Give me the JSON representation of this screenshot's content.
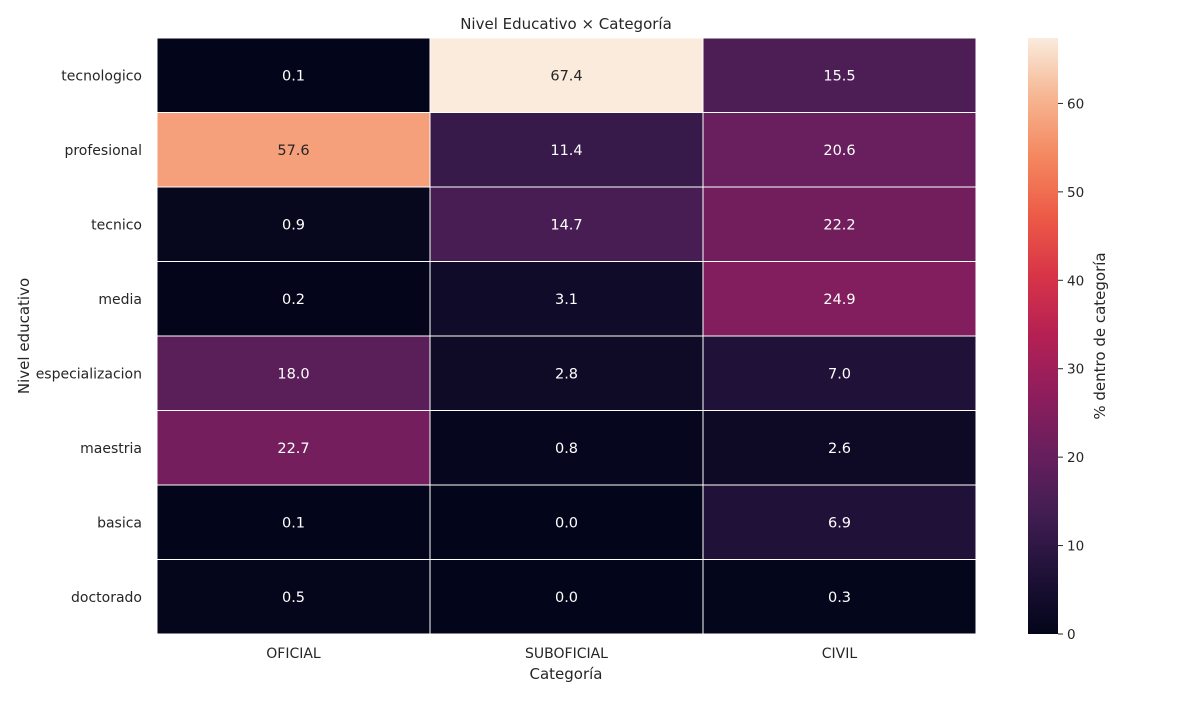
{
  "chart_data": {
    "type": "heatmap",
    "title": "Nivel Educativo × Categoría",
    "xlabel": "Categoría",
    "ylabel": "Nivel educativo",
    "x_categories": [
      "OFICIAL",
      "SUBOFICIAL",
      "CIVIL"
    ],
    "y_categories": [
      "tecnologico",
      "profesional",
      "tecnico",
      "media",
      "especializacion",
      "maestria",
      "basica",
      "doctorado"
    ],
    "values": [
      [
        0.1,
        67.4,
        15.5
      ],
      [
        57.6,
        11.4,
        20.6
      ],
      [
        0.9,
        14.7,
        22.2
      ],
      [
        0.2,
        3.1,
        24.9
      ],
      [
        18.0,
        2.8,
        7.0
      ],
      [
        22.7,
        0.8,
        2.6
      ],
      [
        0.1,
        0.0,
        6.9
      ],
      [
        0.5,
        0.0,
        0.3
      ]
    ],
    "value_labels": [
      [
        "0.1",
        "67.4",
        "15.5"
      ],
      [
        "57.6",
        "11.4",
        "20.6"
      ],
      [
        "0.9",
        "14.7",
        "22.2"
      ],
      [
        "0.2",
        "3.1",
        "24.9"
      ],
      [
        "18.0",
        "2.8",
        "7.0"
      ],
      [
        "22.7",
        "0.8",
        "2.6"
      ],
      [
        "0.1",
        "0.0",
        "6.9"
      ],
      [
        "0.5",
        "0.0",
        "0.3"
      ]
    ],
    "colorbar": {
      "label": "% dentro de categoría",
      "range": [
        0,
        67.4
      ],
      "ticks": [
        0,
        10,
        20,
        30,
        40,
        50,
        60
      ],
      "tick_labels": [
        "0",
        "10",
        "20",
        "30",
        "40",
        "50",
        "60"
      ],
      "colormap": "rocket"
    },
    "grid": false,
    "legend": "right"
  }
}
